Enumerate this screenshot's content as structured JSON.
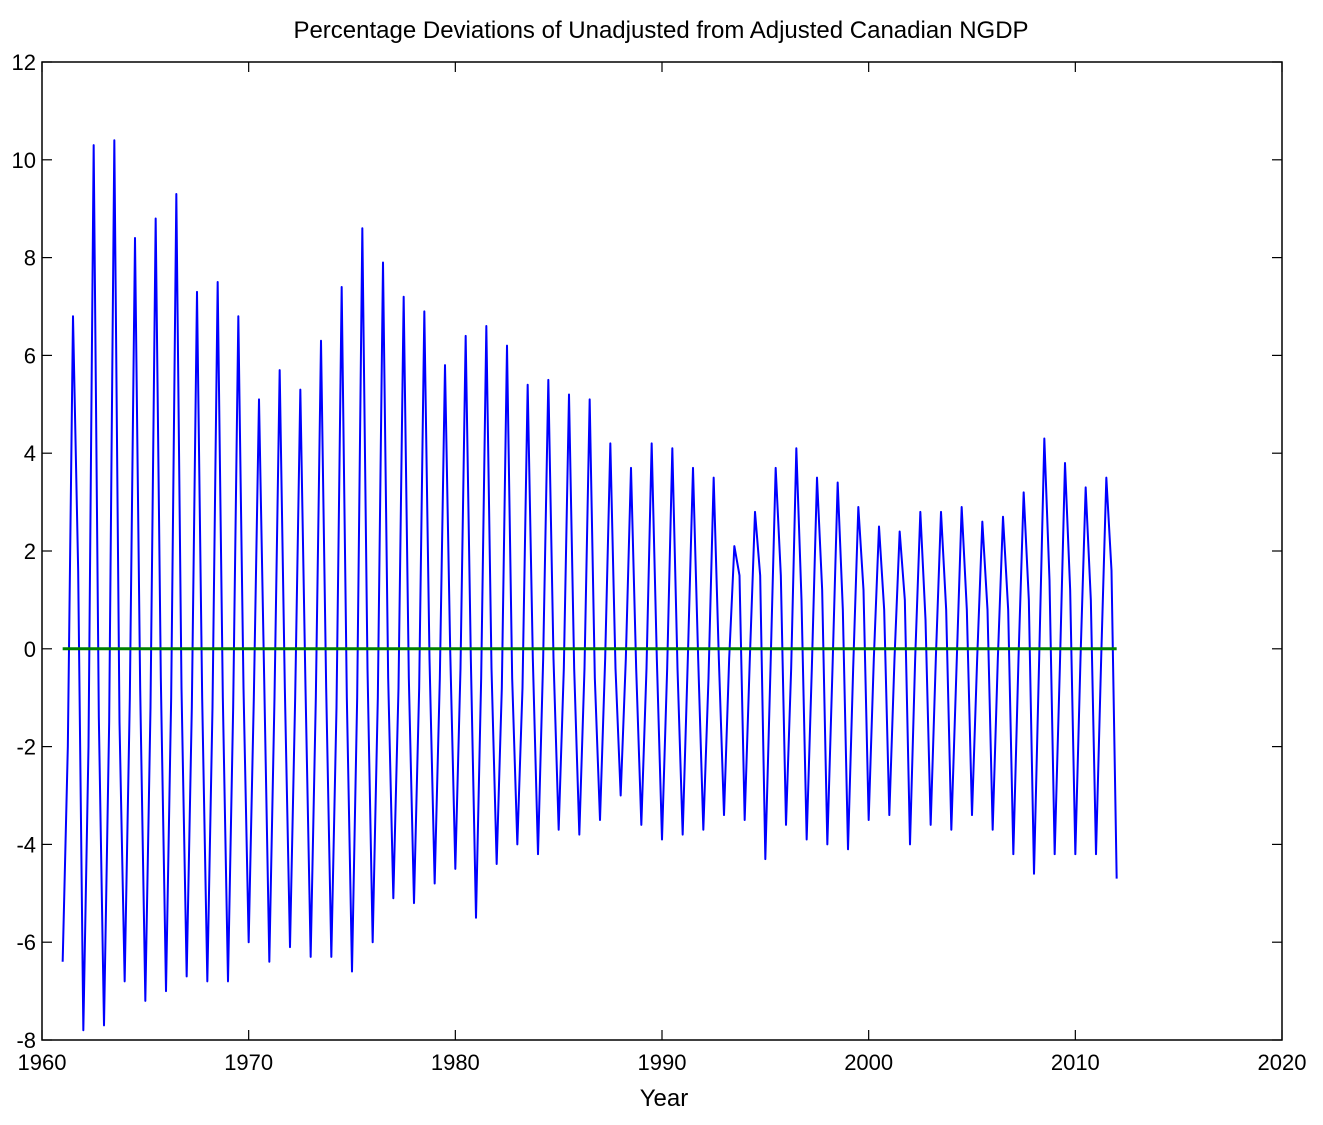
{
  "chart_data": {
    "type": "line",
    "title": "Percentage Deviations of Unadjusted from Adjusted Canadian NGDP",
    "xlabel": "Year",
    "ylabel": "",
    "xlim": [
      1960,
      2020
    ],
    "ylim": [
      -8,
      12
    ],
    "xticks": [
      1960,
      1970,
      1980,
      1990,
      2000,
      2010,
      2020
    ],
    "yticks": [
      -8,
      -6,
      -4,
      -2,
      0,
      2,
      4,
      6,
      8,
      10,
      12
    ],
    "grid": false,
    "colors": {
      "deviation": "#0000ff",
      "zero_line": "#008000"
    },
    "x_start": 1961.0,
    "x_step": 0.25,
    "series": [
      {
        "key": "deviation",
        "values": [
          -6.4,
          -2.0,
          6.8,
          1.6,
          -7.8,
          -2.0,
          10.3,
          -1.4,
          -7.7,
          -1.5,
          10.4,
          -1.5,
          -6.8,
          -1.0,
          8.4,
          -0.8,
          -7.2,
          -1.2,
          8.8,
          -0.6,
          -7.0,
          -1.0,
          9.3,
          -0.8,
          -6.7,
          -1.2,
          7.3,
          -1.0,
          -6.8,
          -1.2,
          7.5,
          -1.0,
          -6.8,
          -1.2,
          6.8,
          -0.8,
          -6.0,
          -1.0,
          5.1,
          -0.6,
          -6.4,
          -1.0,
          5.7,
          -0.8,
          -6.1,
          -1.0,
          5.3,
          -0.8,
          -6.3,
          -1.0,
          6.3,
          -0.8,
          -6.3,
          -1.2,
          7.4,
          -1.0,
          -6.6,
          -1.0,
          8.6,
          -0.4,
          -6.0,
          -1.0,
          7.9,
          -0.6,
          -5.1,
          -0.8,
          7.2,
          -0.6,
          -5.2,
          -0.8,
          6.9,
          -0.2,
          -4.8,
          -0.6,
          5.8,
          0.0,
          -4.5,
          -0.4,
          6.4,
          -0.2,
          -5.5,
          -0.6,
          6.6,
          -0.4,
          -4.4,
          -0.8,
          6.2,
          -0.6,
          -4.0,
          -0.8,
          5.4,
          -0.2,
          -4.2,
          -0.2,
          5.5,
          -0.2,
          -3.7,
          -0.4,
          5.2,
          -0.4,
          -3.8,
          -0.4,
          5.1,
          -0.6,
          -3.5,
          -0.2,
          4.2,
          -0.4,
          -3.0,
          -0.2,
          3.7,
          -0.4,
          -3.6,
          -0.4,
          4.2,
          -0.2,
          -3.9,
          -0.4,
          4.1,
          -0.4,
          -3.8,
          -0.2,
          3.7,
          -0.2,
          -3.7,
          -0.6,
          3.5,
          -0.2,
          -3.4,
          -0.2,
          2.1,
          1.5,
          -3.5,
          -0.2,
          2.8,
          1.5,
          -4.3,
          -0.4,
          3.7,
          1.5,
          -3.6,
          -0.4,
          4.1,
          1.0,
          -3.9,
          -0.4,
          3.5,
          1.2,
          -4.0,
          -0.4,
          3.4,
          0.8,
          -4.1,
          -0.4,
          2.9,
          1.2,
          -3.5,
          -0.2,
          2.5,
          0.8,
          -3.4,
          -0.2,
          2.4,
          1.0,
          -4.0,
          -0.2,
          2.8,
          0.6,
          -3.6,
          -0.2,
          2.8,
          0.8,
          -3.7,
          -0.4,
          2.9,
          0.8,
          -3.4,
          -0.2,
          2.6,
          0.8,
          -3.7,
          -0.2,
          2.7,
          0.8,
          -4.2,
          -0.2,
          3.2,
          1.0,
          -4.6,
          -0.2,
          4.3,
          1.4,
          -4.2,
          -0.4,
          3.8,
          1.2,
          -4.2,
          -0.2,
          3.3,
          1.0,
          -4.2,
          -0.2,
          3.5,
          1.6,
          -4.7
        ]
      },
      {
        "key": "zero_line",
        "values_const": 0,
        "x_range": [
          1961.0,
          2012.0
        ]
      }
    ]
  }
}
